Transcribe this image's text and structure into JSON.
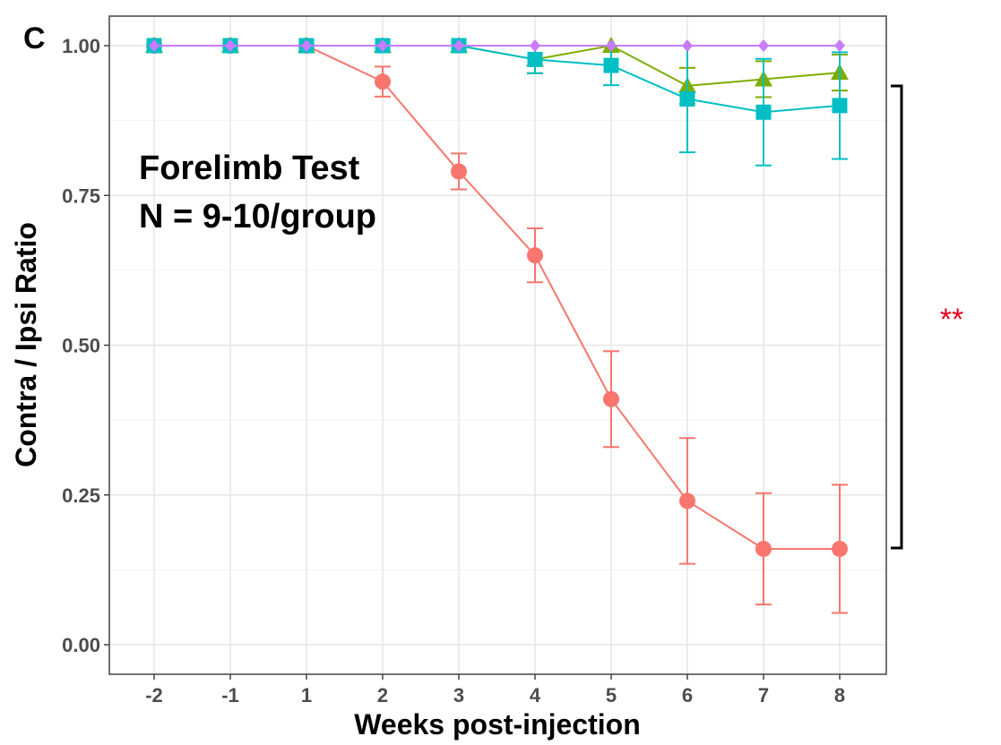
{
  "panel_label": "C",
  "annotation": {
    "line1": "Forelimb Test",
    "line2": "N = 9-10/group"
  },
  "significance": "**",
  "chart_data": {
    "type": "line",
    "title": "",
    "xlabel": "Weeks post-injection",
    "ylabel": "Contra / Ipsi Ratio",
    "x": [
      -2,
      -1,
      1,
      2,
      3,
      4,
      5,
      6,
      7,
      8
    ],
    "x_tick_labels": [
      "-2",
      "-1",
      "1",
      "2",
      "3",
      "4",
      "5",
      "6",
      "7",
      "8"
    ],
    "ylim": [
      0.0,
      1.0
    ],
    "y_ticks": [
      0.0,
      0.25,
      0.5,
      0.75,
      1.0
    ],
    "y_tick_labels": [
      "0.00",
      "0.25",
      "0.50",
      "0.75",
      "1.00"
    ],
    "grid": true,
    "legend": "none",
    "series": [
      {
        "color": "#f8766d",
        "marker": "circle",
        "values": [
          1.0,
          1.0,
          1.0,
          0.94,
          0.79,
          0.65,
          0.41,
          0.24,
          0.16,
          0.16
        ],
        "error": [
          0,
          0,
          0,
          0.025,
          0.03,
          0.045,
          0.08,
          0.105,
          0.093,
          0.107
        ]
      },
      {
        "color": "#7cae00",
        "marker": "triangle",
        "values": [
          1.0,
          1.0,
          1.0,
          1.0,
          1.0,
          0.977,
          1.0,
          0.933,
          0.944,
          0.955
        ],
        "error": [
          0,
          0,
          0,
          0,
          0,
          0.023,
          0,
          0.03,
          0.03,
          0.03
        ]
      },
      {
        "color": "#00bfc4",
        "marker": "square",
        "values": [
          1.0,
          1.0,
          1.0,
          1.0,
          1.0,
          0.977,
          0.967,
          0.911,
          0.889,
          0.9
        ],
        "error": [
          0,
          0,
          0,
          0,
          0,
          0.023,
          0.033,
          0.089,
          0.089,
          0.089
        ]
      },
      {
        "color": "#c77cff",
        "marker": "diamond",
        "values": [
          1.0,
          1.0,
          1.0,
          1.0,
          1.0,
          1.0,
          1.0,
          1.0,
          1.0,
          1.0
        ],
        "error": [
          0,
          0,
          0,
          0,
          0,
          0,
          0,
          0,
          0,
          0
        ]
      }
    ]
  }
}
